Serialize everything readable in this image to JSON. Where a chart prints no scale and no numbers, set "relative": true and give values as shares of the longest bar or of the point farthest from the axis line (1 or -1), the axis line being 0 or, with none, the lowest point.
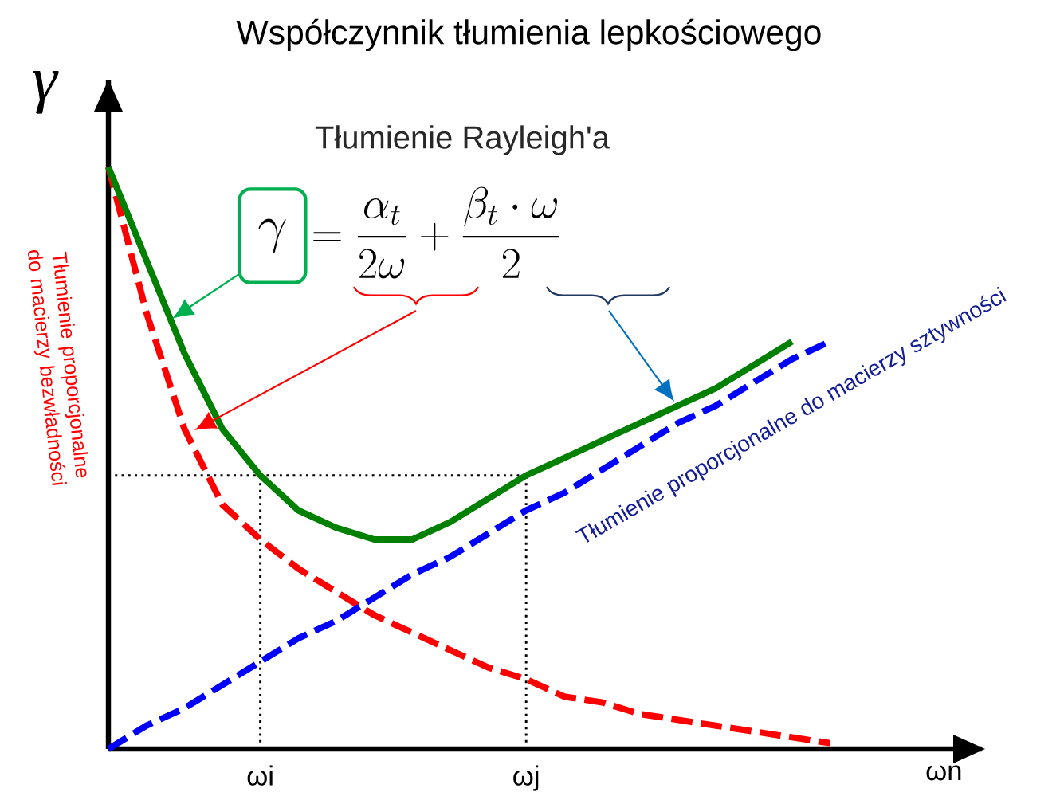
{
  "chart_data": {
    "type": "line",
    "title": "Współczynnik tłumienia lepkościowego",
    "ylabel": "γ",
    "relative": true,
    "annotations": [
      "Tłumienie Rayleigh'a",
      "\\gamma",
      "=\\frac{\\alpha_t}{2\\omega}+\\frac{\\beta_t\\cdot\\omega}{2}"
    ],
    "categories": [
      null,
      null,
      null,
      null,
      "ωi",
      null,
      null,
      null,
      null,
      null,
      null,
      "ωj",
      null,
      null,
      null,
      null,
      null,
      null,
      null,
      null,
      null,
      null,
      "ωn"
    ],
    "series": [
      {
        "name": "Tłumienie proporcjonalne do macierzy bezwładności",
        "color": "#ff0000",
        "line_style": "dashed",
        "values": [
          1.0,
          0.75,
          0.55,
          0.42,
          0.36,
          0.31,
          0.27,
          0.23,
          0.2,
          0.17,
          0.14,
          0.12,
          0.09,
          0.08,
          0.06,
          0.05,
          0.04,
          0.03,
          0.02,
          0.01,
          null,
          null,
          null
        ]
      },
      {
        "color": "#008000",
        "line_style": "solid",
        "values": [
          1.0,
          0.84,
          0.68,
          0.55,
          0.47,
          0.41,
          0.38,
          0.36,
          0.36,
          0.39,
          0.43,
          0.47,
          0.5,
          0.53,
          0.56,
          0.59,
          0.62,
          0.66,
          0.7,
          null,
          null,
          null,
          null
        ]
      },
      {
        "name": "Tłumienie proporcjonalne do macierzy sztywności",
        "color": "#0000ff",
        "line_style": "dashed",
        "values": [
          0,
          0.04,
          0.07,
          0.11,
          0.15,
          0.19,
          0.22,
          0.26,
          0.3,
          0.33,
          0.37,
          0.41,
          0.44,
          0.48,
          0.52,
          0.56,
          0.59,
          0.63,
          0.67,
          0.7,
          null,
          null,
          null
        ]
      }
    ],
    "ref_lines": [
      {
        "axis": "x",
        "value": "ωi",
        "color": "#000000",
        "line_style": "dotted"
      },
      {
        "axis": "x",
        "value": "ωj",
        "color": "#000000",
        "line_style": "dotted"
      },
      {
        "axis": "y",
        "value": 0.47,
        "color": "#000000",
        "line_style": "dotted"
      }
    ]
  }
}
